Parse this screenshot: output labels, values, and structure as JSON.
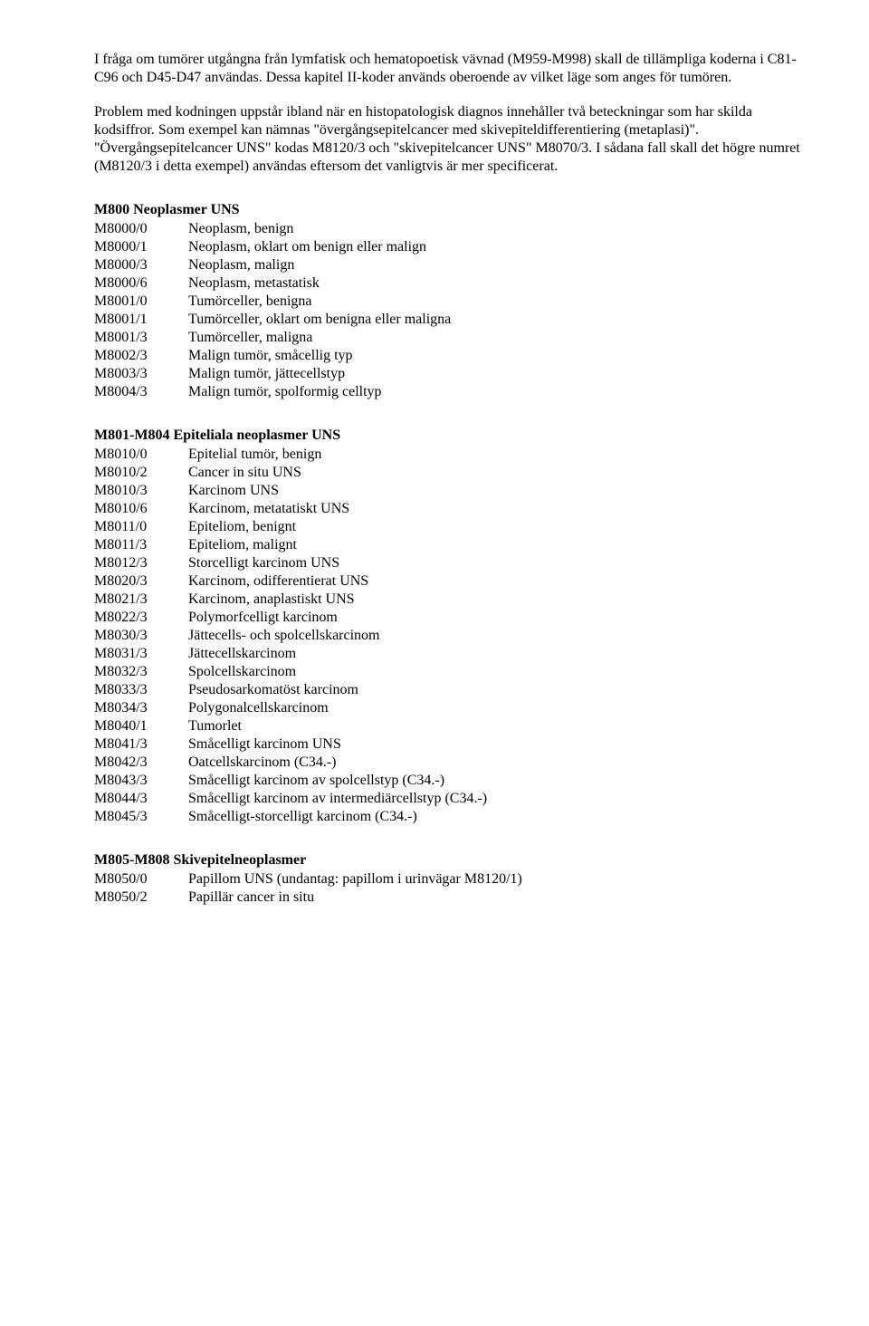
{
  "paragraphs": {
    "p1": "I fråga om tumörer utgångna från lymfatisk och hematopoetisk vävnad (M959-M998) skall de tillämpliga koderna i C81-C96 och D45-D47 användas. Dessa kapitel II-koder används oberoende av vilket läge som anges för tumören.",
    "p2": "Problem med kodningen uppstår ibland när en histopatologisk diagnos innehåller två beteckningar som har skilda kodsiffror. Som exempel kan nämnas \"övergångsepitelcancer med skivepiteldifferentiering (metaplasi)\". \"Övergångsepitelcancer UNS\" kodas M8120/3 och \"skivepitelcancer UNS\" M8070/3. I sådana fall skall det högre numret (M8120/3 i detta exempel) användas eftersom det vanligtvis är mer specificerat."
  },
  "sections": [
    {
      "heading": "M800 Neoplasmer UNS",
      "rows": [
        {
          "code": "M8000/0",
          "desc": "Neoplasm, benign"
        },
        {
          "code": "M8000/1",
          "desc": "Neoplasm, oklart om benign eller malign"
        },
        {
          "code": "M8000/3",
          "desc": "Neoplasm, malign"
        },
        {
          "code": "M8000/6",
          "desc": "Neoplasm, metastatisk"
        },
        {
          "code": "M8001/0",
          "desc": "Tumörceller, benigna"
        },
        {
          "code": "M8001/1",
          "desc": "Tumörceller, oklart om benigna eller maligna"
        },
        {
          "code": "M8001/3",
          "desc": "Tumörceller, maligna"
        },
        {
          "code": "M8002/3",
          "desc": "Malign tumör, småcellig typ"
        },
        {
          "code": "M8003/3",
          "desc": "Malign tumör, jättecellstyp"
        },
        {
          "code": "M8004/3",
          "desc": "Malign tumör, spolformig celltyp"
        }
      ]
    },
    {
      "heading": "M801-M804 Epiteliala neoplasmer UNS",
      "rows": [
        {
          "code": "M8010/0",
          "desc": "Epitelial tumör, benign"
        },
        {
          "code": "M8010/2",
          "desc": "Cancer in situ UNS"
        },
        {
          "code": "M8010/3",
          "desc": "Karcinom UNS"
        },
        {
          "code": "M8010/6",
          "desc": "Karcinom, metatatiskt UNS"
        },
        {
          "code": "M8011/0",
          "desc": "Epiteliom, benignt"
        },
        {
          "code": "M8011/3",
          "desc": "Epiteliom, malignt"
        },
        {
          "code": "M8012/3",
          "desc": "Storcelligt  karcinom UNS"
        },
        {
          "code": "M8020/3",
          "desc": "Karcinom, odifferentierat UNS"
        },
        {
          "code": "M8021/3",
          "desc": "Karcinom, anaplastiskt UNS"
        },
        {
          "code": "M8022/3",
          "desc": "Polymorfcelligt karcinom"
        },
        {
          "code": "M8030/3",
          "desc": "Jättecells- och spolcellskarcinom"
        },
        {
          "code": "M8031/3",
          "desc": "Jättecellskarcinom"
        },
        {
          "code": "M8032/3",
          "desc": "Spolcellskarcinom"
        },
        {
          "code": "M8033/3",
          "desc": "Pseudosarkomatöst karcinom"
        },
        {
          "code": "M8034/3",
          "desc": "Polygonalcellskarcinom"
        },
        {
          "code": "M8040/1",
          "desc": "Tumorlet"
        },
        {
          "code": "M8041/3",
          "desc": "Småcelligt karcinom UNS"
        },
        {
          "code": "M8042/3",
          "desc": "Oatcellskarcinom (C34.-)"
        },
        {
          "code": "M8043/3",
          "desc": "Småcelligt karcinom av spolcellstyp (C34.-)"
        },
        {
          "code": "M8044/3",
          "desc": "Småcelligt karcinom av intermediärcellstyp (C34.-)"
        },
        {
          "code": "M8045/3",
          "desc": "Småcelligt-storcelligt karcinom (C34.-)"
        }
      ]
    },
    {
      "heading": "M805-M808 Skivepitelneoplasmer",
      "rows": [
        {
          "code": "M8050/0",
          "desc": "Papillom UNS (undantag: papillom i urinvägar M8120/1)"
        },
        {
          "code": "M8050/2",
          "desc": "Papillär cancer in situ"
        }
      ]
    }
  ]
}
